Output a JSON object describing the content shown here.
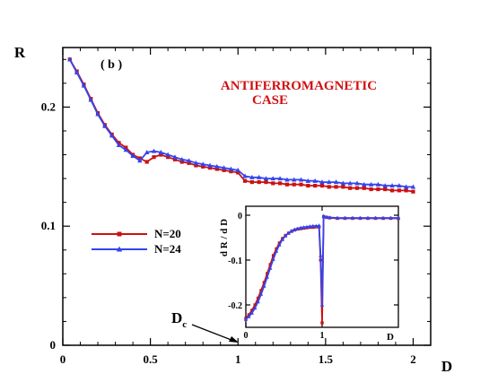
{
  "chart_data": [
    {
      "type": "line",
      "panel_label": "( b )",
      "xlabel": "D",
      "ylabel": "R",
      "xlim": [
        0,
        2.1
      ],
      "ylim": [
        0,
        0.25
      ],
      "xticks": [
        0,
        0.5,
        1,
        1.5,
        2
      ],
      "xtick_labels": [
        "0",
        "0.5",
        "1",
        "1.5",
        "2"
      ],
      "yticks": [
        0,
        0.1,
        0.2
      ],
      "ytick_labels": [
        "0",
        "0.1",
        "0.2"
      ],
      "annotation": {
        "line1": "ANTIFERROMAGNETIC",
        "line2": "CASE"
      },
      "dc_label": {
        "main": "D",
        "sub": "c",
        "x": 1.0
      },
      "legend_position": "left",
      "series": [
        {
          "name": "N=20",
          "color": "#cc1111",
          "marker": "square",
          "x": [
            0.04,
            0.08,
            0.12,
            0.16,
            0.2,
            0.24,
            0.28,
            0.32,
            0.36,
            0.4,
            0.44,
            0.48,
            0.52,
            0.56,
            0.6,
            0.64,
            0.68,
            0.72,
            0.76,
            0.8,
            0.84,
            0.88,
            0.92,
            0.96,
            1.0,
            1.04,
            1.08,
            1.12,
            1.16,
            1.2,
            1.24,
            1.28,
            1.32,
            1.36,
            1.4,
            1.44,
            1.48,
            1.52,
            1.56,
            1.6,
            1.64,
            1.68,
            1.72,
            1.76,
            1.8,
            1.84,
            1.88,
            1.92,
            1.96,
            2.0
          ],
          "y": [
            0.24,
            0.23,
            0.219,
            0.207,
            0.195,
            0.185,
            0.177,
            0.17,
            0.166,
            0.16,
            0.157,
            0.154,
            0.158,
            0.16,
            0.158,
            0.156,
            0.154,
            0.153,
            0.151,
            0.15,
            0.149,
            0.148,
            0.147,
            0.146,
            0.145,
            0.138,
            0.137,
            0.137,
            0.137,
            0.136,
            0.136,
            0.135,
            0.135,
            0.135,
            0.134,
            0.134,
            0.134,
            0.133,
            0.133,
            0.133,
            0.132,
            0.132,
            0.132,
            0.131,
            0.131,
            0.131,
            0.13,
            0.13,
            0.13,
            0.129
          ]
        },
        {
          "name": "N=24",
          "color": "#3344ee",
          "marker": "triangle",
          "x": [
            0.04,
            0.08,
            0.12,
            0.16,
            0.2,
            0.24,
            0.28,
            0.32,
            0.36,
            0.4,
            0.44,
            0.48,
            0.52,
            0.56,
            0.6,
            0.64,
            0.68,
            0.72,
            0.76,
            0.8,
            0.84,
            0.88,
            0.92,
            0.96,
            1.0,
            1.04,
            1.08,
            1.12,
            1.16,
            1.2,
            1.24,
            1.28,
            1.32,
            1.36,
            1.4,
            1.44,
            1.48,
            1.52,
            1.56,
            1.6,
            1.64,
            1.68,
            1.72,
            1.76,
            1.8,
            1.84,
            1.88,
            1.92,
            1.96,
            2.0
          ],
          "y": [
            0.24,
            0.229,
            0.218,
            0.206,
            0.194,
            0.184,
            0.176,
            0.168,
            0.164,
            0.159,
            0.155,
            0.162,
            0.163,
            0.162,
            0.16,
            0.158,
            0.156,
            0.155,
            0.153,
            0.152,
            0.151,
            0.15,
            0.149,
            0.148,
            0.147,
            0.142,
            0.141,
            0.141,
            0.14,
            0.14,
            0.14,
            0.139,
            0.139,
            0.139,
            0.138,
            0.138,
            0.137,
            0.137,
            0.137,
            0.136,
            0.136,
            0.136,
            0.135,
            0.135,
            0.135,
            0.134,
            0.134,
            0.134,
            0.133,
            0.133
          ]
        }
      ]
    },
    {
      "type": "line",
      "inset": true,
      "xlabel": "D",
      "ylabel": "d R / d D",
      "xlim": [
        0,
        2
      ],
      "ylim": [
        -0.25,
        0.02
      ],
      "xticks": [
        0,
        1
      ],
      "xtick_labels": [
        "0",
        "1"
      ],
      "yticks": [
        0,
        -0.1,
        -0.2
      ],
      "ytick_labels": [
        "0",
        "-0.1",
        "-0.2"
      ],
      "series": [
        {
          "name": "N=20",
          "color": "#cc1111",
          "marker": "square",
          "x": [
            0.0,
            0.04,
            0.08,
            0.12,
            0.16,
            0.2,
            0.24,
            0.28,
            0.32,
            0.36,
            0.4,
            0.44,
            0.48,
            0.52,
            0.56,
            0.6,
            0.64,
            0.68,
            0.72,
            0.76,
            0.8,
            0.84,
            0.88,
            0.92,
            0.96,
            0.98,
            1.0,
            1.02,
            1.06,
            1.1,
            1.2,
            1.3,
            1.4,
            1.5,
            1.6,
            1.7,
            1.8,
            1.9,
            2.0
          ],
          "y": [
            -0.23,
            -0.222,
            -0.212,
            -0.2,
            -0.185,
            -0.168,
            -0.15,
            -0.13,
            -0.11,
            -0.09,
            -0.075,
            -0.062,
            -0.052,
            -0.045,
            -0.04,
            -0.036,
            -0.033,
            -0.031,
            -0.03,
            -0.029,
            -0.028,
            -0.027,
            -0.027,
            -0.026,
            -0.026,
            -0.1,
            -0.24,
            -0.003,
            -0.005,
            -0.006,
            -0.007,
            -0.007,
            -0.007,
            -0.007,
            -0.007,
            -0.007,
            -0.007,
            -0.007,
            -0.007
          ]
        },
        {
          "name": "N=24",
          "color": "#3344ee",
          "marker": "triangle",
          "x": [
            0.0,
            0.04,
            0.08,
            0.12,
            0.16,
            0.2,
            0.24,
            0.28,
            0.32,
            0.36,
            0.4,
            0.44,
            0.48,
            0.52,
            0.56,
            0.6,
            0.64,
            0.68,
            0.72,
            0.76,
            0.8,
            0.84,
            0.88,
            0.92,
            0.96,
            0.98,
            1.0,
            1.02,
            1.06,
            1.1,
            1.2,
            1.3,
            1.4,
            1.5,
            1.6,
            1.7,
            1.8,
            1.9,
            2.0
          ],
          "y": [
            -0.232,
            -0.226,
            -0.218,
            -0.207,
            -0.193,
            -0.176,
            -0.158,
            -0.138,
            -0.118,
            -0.098,
            -0.08,
            -0.066,
            -0.054,
            -0.046,
            -0.04,
            -0.035,
            -0.032,
            -0.03,
            -0.028,
            -0.027,
            -0.026,
            -0.025,
            -0.024,
            -0.024,
            -0.023,
            -0.09,
            -0.2,
            -0.002,
            -0.004,
            -0.005,
            -0.006,
            -0.006,
            -0.006,
            -0.006,
            -0.006,
            -0.006,
            -0.006,
            -0.006,
            -0.006
          ]
        }
      ]
    }
  ]
}
